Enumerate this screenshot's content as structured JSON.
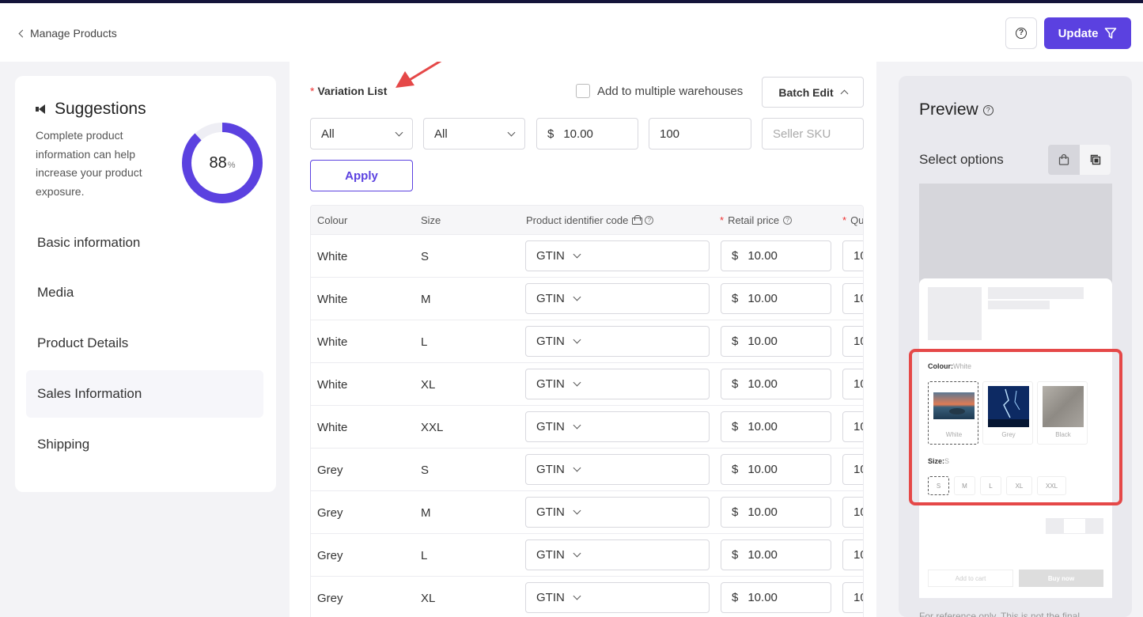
{
  "header": {
    "back_label": "Manage Products",
    "help_icon": "question-circle-icon",
    "update_label": "Update",
    "update_icon": "filter-triangle-icon"
  },
  "suggestions": {
    "title": "Suggestions",
    "icon": "megaphone-icon",
    "text": "Complete product information can help increase your product exposure.",
    "score": "88",
    "score_unit": "%",
    "score_fraction": 0.88,
    "accent": "#5b41e0"
  },
  "nav": {
    "items": [
      {
        "label": "Basic information"
      },
      {
        "label": "Media"
      },
      {
        "label": "Product Details"
      },
      {
        "label": "Sales Information"
      },
      {
        "label": "Shipping"
      }
    ],
    "active_index": 3
  },
  "variation": {
    "title": "Variation List",
    "required_mark": "*",
    "multi_warehouse_label": "Add to multiple warehouses",
    "batch_edit_label": "Batch Edit",
    "filters": {
      "colour_value": "All",
      "size_value": "All",
      "price_symbol": "$",
      "price_value": "10.00",
      "quantity_value": "100",
      "sku_placeholder": "Seller SKU"
    },
    "apply_label": "Apply",
    "columns": {
      "colour": "Colour",
      "size": "Size",
      "identifier": "Product identifier code",
      "retail": "Retail price",
      "quantity": "Qu"
    },
    "rows": [
      {
        "colour": "White",
        "size": "S",
        "code": "GTIN",
        "price": "10.00",
        "qty": "10"
      },
      {
        "colour": "White",
        "size": "M",
        "code": "GTIN",
        "price": "10.00",
        "qty": "10"
      },
      {
        "colour": "White",
        "size": "L",
        "code": "GTIN",
        "price": "10.00",
        "qty": "10"
      },
      {
        "colour": "White",
        "size": "XL",
        "code": "GTIN",
        "price": "10.00",
        "qty": "10"
      },
      {
        "colour": "White",
        "size": "XXL",
        "code": "GTIN",
        "price": "10.00",
        "qty": "10"
      },
      {
        "colour": "Grey",
        "size": "S",
        "code": "GTIN",
        "price": "10.00",
        "qty": "10"
      },
      {
        "colour": "Grey",
        "size": "M",
        "code": "GTIN",
        "price": "10.00",
        "qty": "10"
      },
      {
        "colour": "Grey",
        "size": "L",
        "code": "GTIN",
        "price": "10.00",
        "qty": "10"
      },
      {
        "colour": "Grey",
        "size": "XL",
        "code": "GTIN",
        "price": "10.00",
        "qty": "10"
      }
    ],
    "price_symbol": "$"
  },
  "preview": {
    "title": "Preview",
    "select_options_label": "Select options",
    "colour_label": "Colour:",
    "colour_value": "White",
    "swatches": [
      {
        "caption": "White"
      },
      {
        "caption": "Grey"
      },
      {
        "caption": "Black"
      }
    ],
    "size_label": "Size:",
    "size_value": "S",
    "sizes": [
      "S",
      "M",
      "L",
      "XL",
      "XXL"
    ],
    "add_to_cart": "Add to cart",
    "buy_now": "Buy now",
    "note": "For reference only. This is not the final"
  }
}
